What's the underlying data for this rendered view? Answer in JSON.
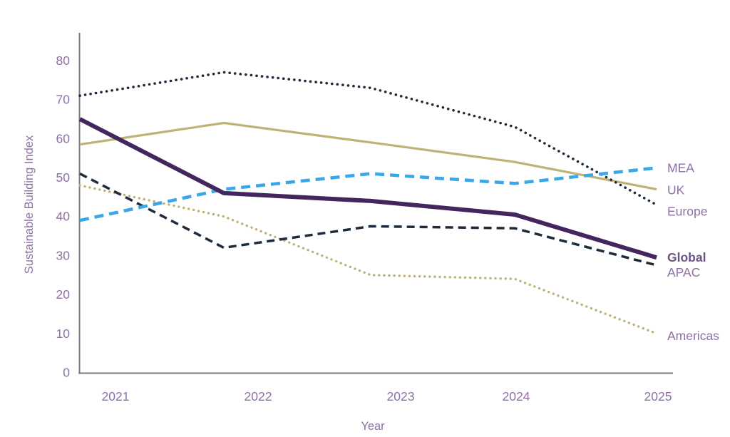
{
  "chart_data": {
    "type": "line",
    "title": "",
    "xlabel": "Year",
    "ylabel": "Sustainable Building Index",
    "categories": [
      "2021",
      "2022",
      "2023",
      "2024",
      "2025"
    ],
    "y_ticks": [
      0,
      10,
      20,
      30,
      40,
      50,
      60,
      70,
      80
    ],
    "ylim": [
      0,
      87
    ],
    "grid": false,
    "legend_position": "right-of-line-labels",
    "series": [
      {
        "name": "MEA",
        "label": "MEA",
        "values": [
          39,
          47,
          51,
          48.5,
          52.5
        ],
        "color": "#3aa7e8",
        "line_style": "dashed",
        "dash": "13 8",
        "width": 4.5,
        "cap": "butt",
        "bold_label": false
      },
      {
        "name": "UK",
        "label": "UK",
        "values": [
          58.5,
          64,
          59,
          54,
          47
        ],
        "color": "#bfb276",
        "line_style": "solid",
        "dash": "",
        "width": 3.2,
        "cap": "butt",
        "bold_label": false
      },
      {
        "name": "Europe",
        "label": "Europe",
        "values": [
          71,
          77,
          73,
          63,
          43
        ],
        "color": "#1d2c3c",
        "line_style": "dotted",
        "dash": "0.1 7.5",
        "width": 3.6,
        "cap": "round",
        "bold_label": false
      },
      {
        "name": "Global",
        "label": "Global",
        "values": [
          65,
          46,
          44,
          40.5,
          29.5
        ],
        "color": "#44265f",
        "line_style": "solid-thick",
        "dash": "",
        "width": 6,
        "cap": "butt",
        "bold_label": true
      },
      {
        "name": "APAC",
        "label": "APAC",
        "values": [
          51,
          32,
          37.5,
          37,
          27.5
        ],
        "color": "#1d2c3c",
        "line_style": "dashed",
        "dash": "11 7",
        "width": 3.5,
        "cap": "butt",
        "bold_label": false
      },
      {
        "name": "Americas",
        "label": "Americas",
        "values": [
          48,
          40,
          25,
          24,
          10
        ],
        "color": "#bfb276",
        "line_style": "dotted",
        "dash": "0.1 7",
        "width": 3.4,
        "cap": "round",
        "bold_label": false
      }
    ],
    "colors": {
      "tick_text": "#8d6fa5",
      "axis_title_text": "#8d6fa5",
      "series_label_text": "#8d6fa5",
      "global_label_text": "#6b5386",
      "axis_line": "#7c7c7c"
    }
  }
}
